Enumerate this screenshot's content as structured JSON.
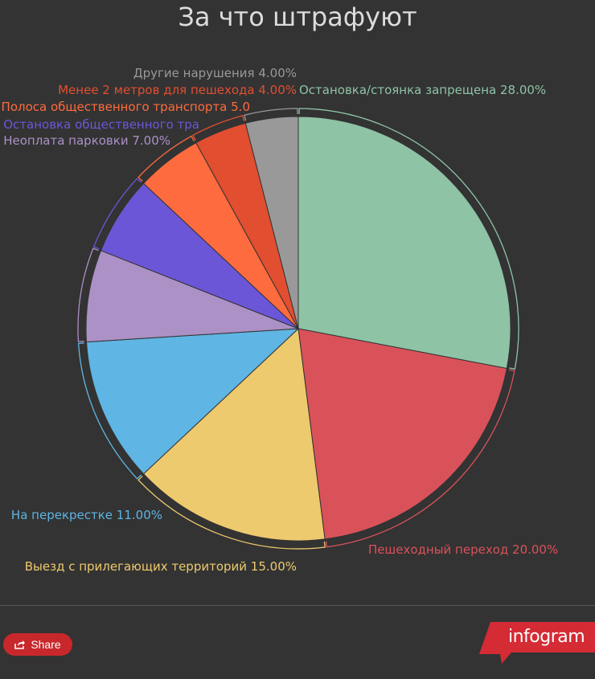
{
  "chart_data": {
    "type": "pie",
    "title": "За что штрафуют",
    "slices": [
      {
        "label": "Остановка/стоянка запрещена 28.00%",
        "value": 28,
        "color": "#8ec3a6"
      },
      {
        "label": "Пешеходный переход 20.00%",
        "value": 20,
        "color": "#d9525a"
      },
      {
        "label": "Выезд с прилегающих территорий 15.00%",
        "value": 15,
        "color": "#eeca6e"
      },
      {
        "label": "На перекрестке 11.00%",
        "value": 11,
        "color": "#5fb5e3"
      },
      {
        "label": "Неоплата парковки 7.00%",
        "value": 7,
        "color": "#ab91c5"
      },
      {
        "label": "Остановка общественного тра",
        "value": 6,
        "color": "#6c56d8"
      },
      {
        "label": "Полоса общественного транспорта 5.0",
        "value": 5,
        "color": "#fe6b3e"
      },
      {
        "label": "Менее 2 метров для пешехода 4.00%",
        "value": 4,
        "color": "#e24e30"
      },
      {
        "label": "Другие нарушения 4.00%",
        "value": 4,
        "color": "#999999"
      }
    ]
  },
  "footer": {
    "share_label": "Share",
    "logo_text": "infogram",
    "logo_color": "#d42b35"
  }
}
